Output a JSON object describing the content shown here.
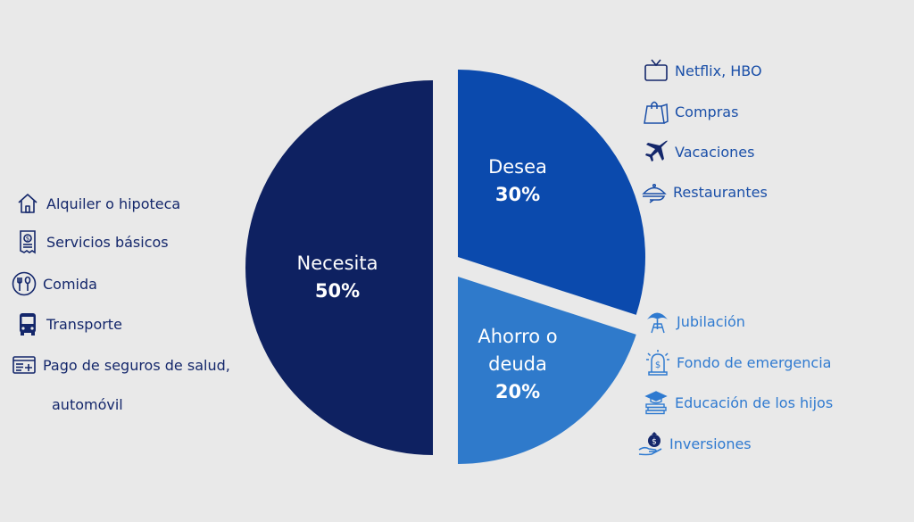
{
  "chart_data": {
    "type": "pie",
    "layout": "exploded",
    "slices": [
      {
        "name": "Necesita",
        "value": 50,
        "label": "50%",
        "color": "#0e2161"
      },
      {
        "name": "Desea",
        "value": 30,
        "label": "30%",
        "color": "#0b4aad"
      },
      {
        "name": "Ahorro o deuda",
        "value": 20,
        "label": "20%",
        "color": "#2f7acb"
      }
    ]
  },
  "legend_groups": {
    "needs": {
      "color": "#14276b",
      "items": [
        {
          "label": "Alquiler o hipoteca",
          "icon": "house-icon"
        },
        {
          "label": "Servicios básicos",
          "icon": "bill-icon"
        },
        {
          "label": "Comida",
          "icon": "fork-spoon-icon"
        },
        {
          "label": "Transporte",
          "icon": "bus-icon"
        },
        {
          "label": "Pago de seguros de salud,",
          "continuation": "automóvil",
          "icon": "insurance-card-icon"
        }
      ]
    },
    "wants": {
      "color": "#1a4fa8",
      "items": [
        {
          "label": "Netflix, HBO",
          "icon": "tv-icon"
        },
        {
          "label": "Compras",
          "icon": "shopping-bag-icon"
        },
        {
          "label": "Vacaciones",
          "icon": "airplane-icon"
        },
        {
          "label": "Restaurantes",
          "icon": "cloche-icon"
        }
      ]
    },
    "save": {
      "color": "#2f7ad0",
      "items": [
        {
          "label": "Jubilación",
          "icon": "beach-umbrella-icon"
        },
        {
          "label": "Fondo de emergencia",
          "icon": "alarm-money-icon"
        },
        {
          "label": "Educación de los hijos",
          "icon": "graduation-cap-books-icon"
        },
        {
          "label": "Inversiones",
          "icon": "hand-money-bag-icon"
        }
      ]
    }
  }
}
